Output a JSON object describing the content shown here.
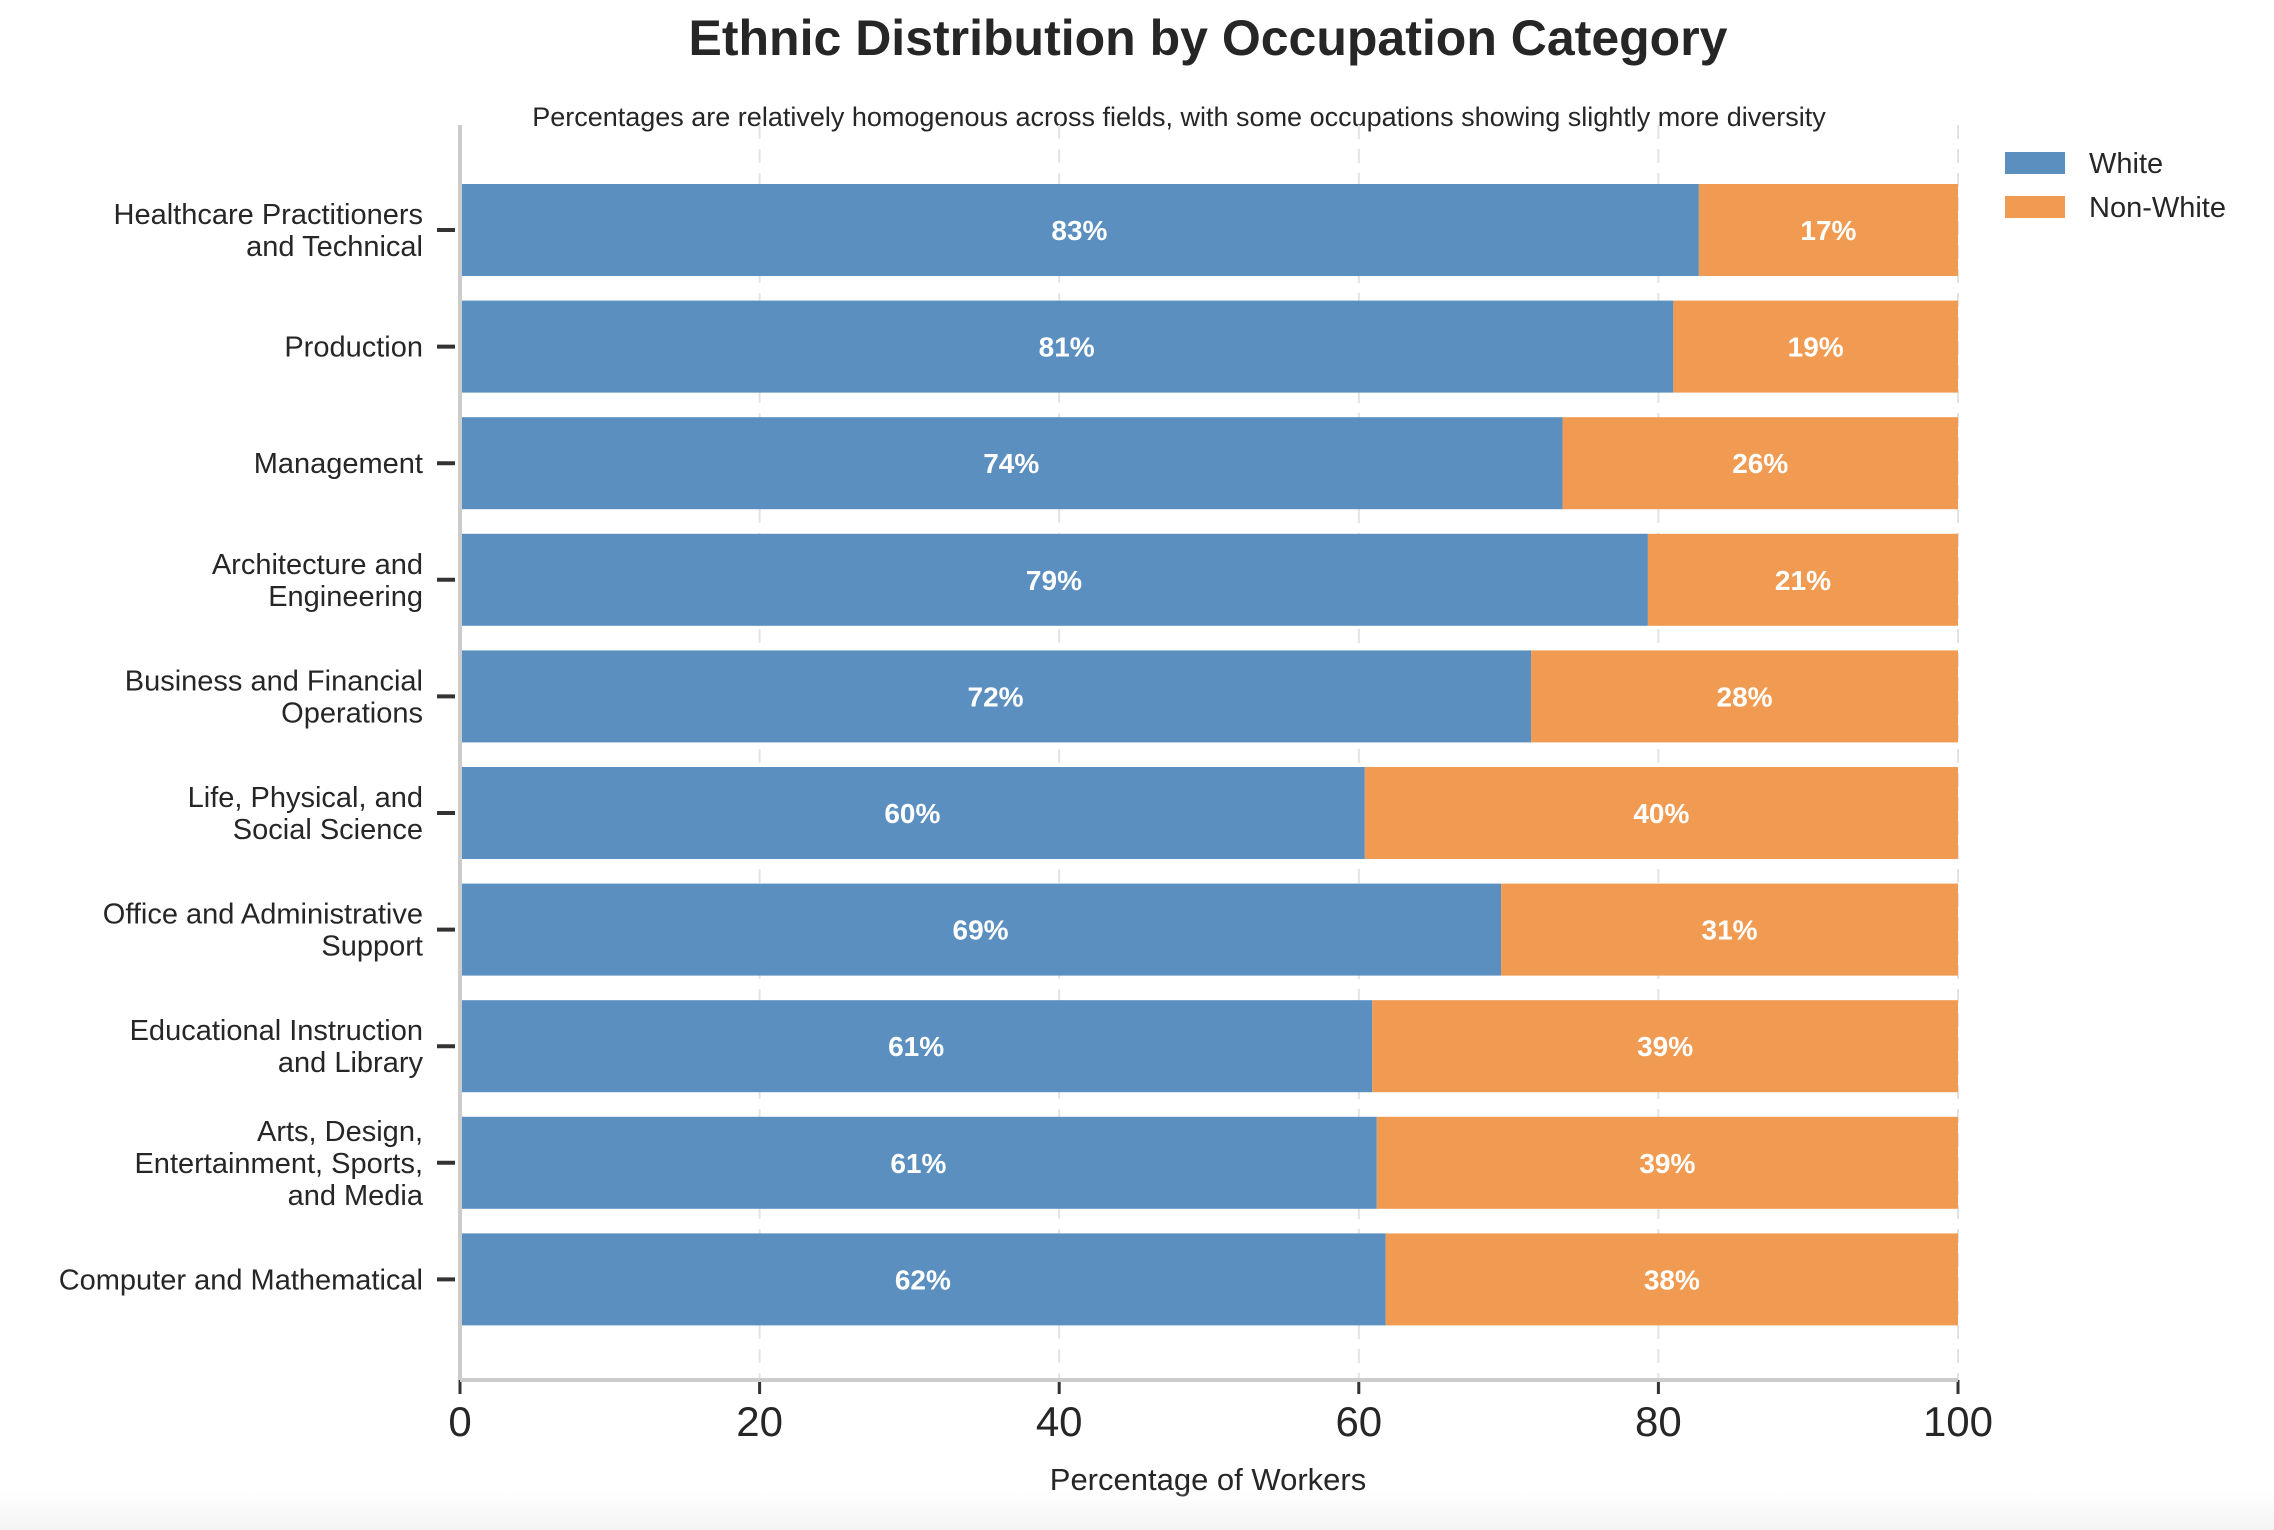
{
  "chart_data": {
    "type": "bar",
    "orientation": "horizontal",
    "stacked": true,
    "title": "Ethnic Distribution by Occupation Category",
    "subtitle": "Percentages are relatively homogenous across fields, with some occupations showing slightly more diversity",
    "xlabel": "Percentage of Workers",
    "ylabel": "",
    "xlim": [
      0,
      100
    ],
    "x_ticks": [
      "0",
      "20",
      "40",
      "60",
      "80",
      "100"
    ],
    "grid": "vertical dashed",
    "legend_position": "top-right outside",
    "categories": [
      [
        "Healthcare Practitioners",
        "and Technical"
      ],
      [
        "Production"
      ],
      [
        "Management"
      ],
      [
        "Architecture and",
        "Engineering"
      ],
      [
        "Business and Financial",
        "Operations"
      ],
      [
        "Life, Physical, and",
        "Social Science"
      ],
      [
        "Office and Administrative",
        "Support"
      ],
      [
        "Educational Instruction",
        "and Library"
      ],
      [
        "Arts, Design,",
        "Entertainment, Sports,",
        "and Media"
      ],
      [
        "Computer and Mathematical"
      ]
    ],
    "series": [
      {
        "name": "White",
        "color": "#5b8fc0",
        "values": [
          82.7,
          81.0,
          73.6,
          79.3,
          71.5,
          60.4,
          69.5,
          60.9,
          61.2,
          61.8
        ],
        "labels": [
          "83%",
          "81%",
          "74%",
          "79%",
          "72%",
          "60%",
          "69%",
          "61%",
          "61%",
          "62%"
        ]
      },
      {
        "name": "Non-White",
        "color": "#f09b51",
        "values": [
          17.3,
          19.0,
          26.4,
          20.7,
          28.5,
          39.6,
          30.5,
          39.1,
          38.8,
          38.2
        ],
        "labels": [
          "17%",
          "19%",
          "26%",
          "21%",
          "28%",
          "40%",
          "31%",
          "39%",
          "39%",
          "38%"
        ]
      }
    ]
  }
}
